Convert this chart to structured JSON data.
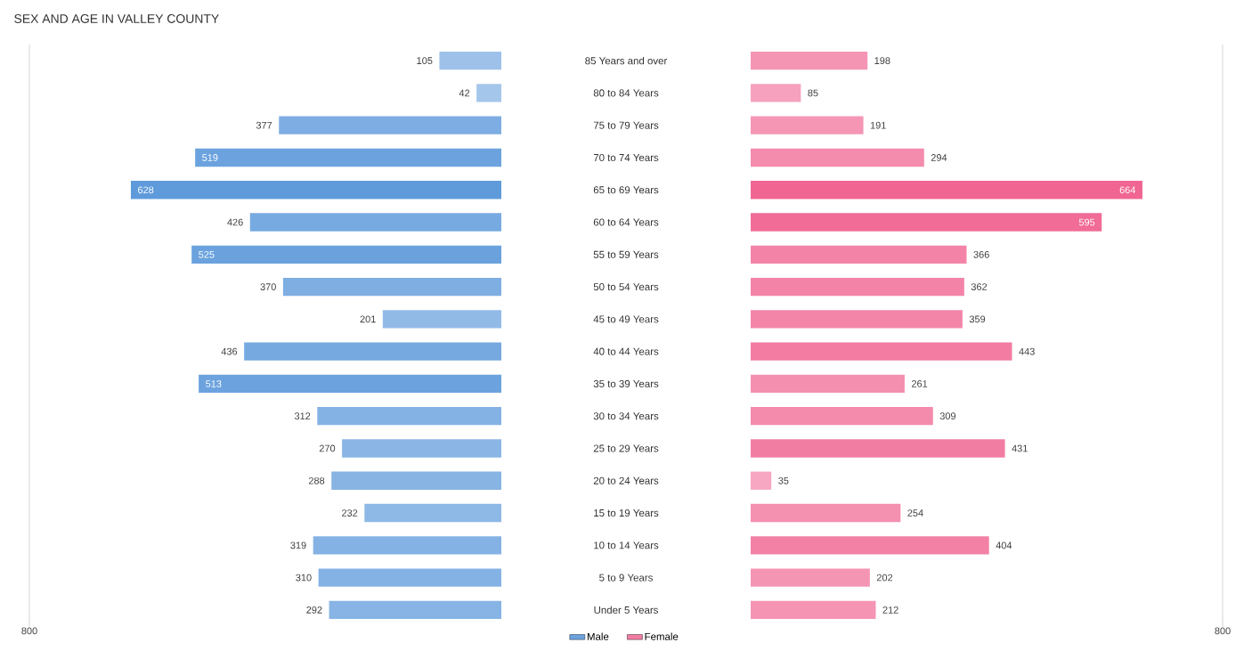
{
  "chart_data": [
    {
      "type": "bar",
      "orientation": "horizontal",
      "title": "SEX AND AGE IN VALLEY COUNTY",
      "categories": [
        "85 Years and over",
        "80 to 84 Years",
        "75 to 79 Years",
        "70 to 74 Years",
        "65 to 69 Years",
        "60 to 64 Years",
        "55 to 59 Years",
        "50 to 54 Years",
        "45 to 49 Years",
        "40 to 44 Years",
        "35 to 39 Years",
        "30 to 34 Years",
        "25 to 29 Years",
        "20 to 24 Years",
        "15 to 19 Years",
        "10 to 14 Years",
        "5 to 9 Years",
        "Under 5 Years"
      ],
      "series": [
        {
          "name": "Male",
          "color": "#6ca3de",
          "values": [
            105,
            42,
            377,
            519,
            628,
            426,
            525,
            370,
            201,
            436,
            513,
            312,
            270,
            288,
            232,
            319,
            310,
            292
          ],
          "colors": [
            "#9dc1e9",
            "#a5c6eb",
            "#7dade2",
            "#6ca3de",
            "#5f9bdb",
            "#77aae1",
            "#6ba2de",
            "#7eaee2",
            "#92bae7",
            "#76a9e0",
            "#6ca3de",
            "#84b2e4",
            "#8ab5e5",
            "#88b4e4",
            "#8eb8e6",
            "#84b2e4",
            "#85b2e4",
            "#87b4e4"
          ]
        }
      ],
      "xlim": [
        800,
        0
      ],
      "xticks": [
        800
      ],
      "data_labels": true,
      "legend": "bottom right"
    },
    {
      "type": "bar",
      "orientation": "horizontal",
      "categories": [
        null,
        null,
        null,
        null,
        null,
        null,
        null,
        null,
        null,
        null,
        null,
        null,
        null,
        null,
        null,
        null,
        null,
        null
      ],
      "series": [
        {
          "name": "Female",
          "color": "#f27ca2",
          "values": [
            198,
            85,
            191,
            294,
            664,
            595,
            366,
            362,
            359,
            443,
            261,
            309,
            431,
            35,
            254,
            404,
            202,
            212
          ],
          "colors": [
            "#f595b4",
            "#f6a1bd",
            "#f596b5",
            "#f48cad",
            "#f06592",
            "#f16c97",
            "#f384a8",
            "#f384a8",
            "#f385a9",
            "#f27ca2",
            "#f48fb0",
            "#f48aac",
            "#f27da3",
            "#f7a7c1",
            "#f490b0",
            "#f380a5",
            "#f595b4",
            "#f594b3"
          ]
        }
      ],
      "xlim": [
        0,
        800
      ],
      "xticks": [
        800
      ],
      "data_labels": true,
      "legend": "bottom left"
    }
  ]
}
